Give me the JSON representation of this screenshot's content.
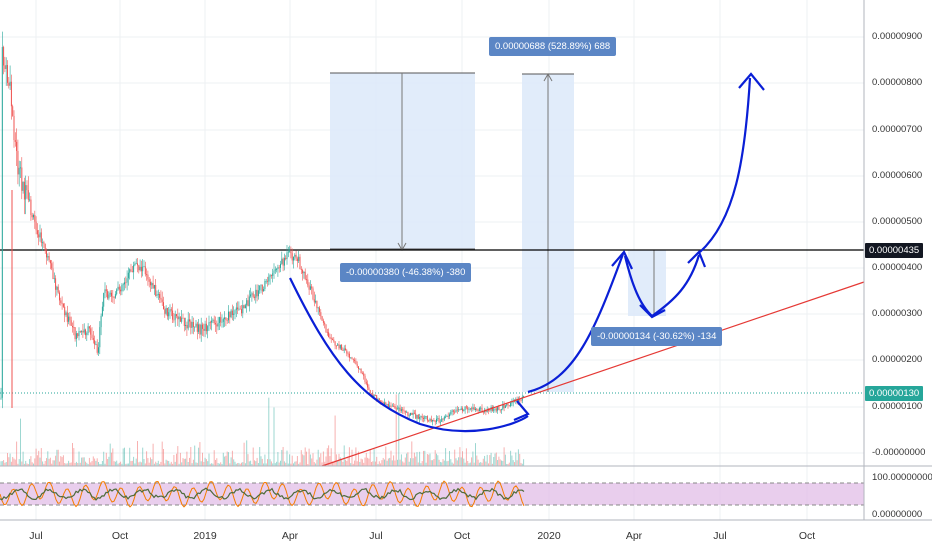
{
  "chart_data": {
    "type": "candlestick",
    "price_axis": {
      "ticks": [
        "0.00000900",
        "0.00000800",
        "0.00000700",
        "0.00000600",
        "0.00000500",
        "0.00000400",
        "0.00000300",
        "0.00000200",
        "0.00000100",
        "-0.00000000"
      ],
      "current_price": "0.00000130",
      "horizontal_line_price": "0.00000435"
    },
    "time_axis": {
      "ticks": [
        "Jul",
        "Oct",
        "2019",
        "Apr",
        "Jul",
        "Oct",
        "2020",
        "Apr",
        "Jul",
        "Oct"
      ]
    },
    "oscillator_axis": {
      "ticks": [
        "100.00000000",
        "0.00000000"
      ]
    },
    "measurements": [
      {
        "label": "-0.00000380 (-46.38%) -380"
      },
      {
        "label": "0.00000688 (528.89%) 688"
      },
      {
        "label": "-0.00000134 (-30.62%) -134"
      }
    ],
    "colors": {
      "up": "#26a69a",
      "down": "#ef5350",
      "trendline": "#e53935",
      "drawing": "#0a1fd6",
      "measure_box": "#5b86c5",
      "current_price_tag": "#26a69a",
      "oscillator_band": "#e1bee7"
    }
  }
}
